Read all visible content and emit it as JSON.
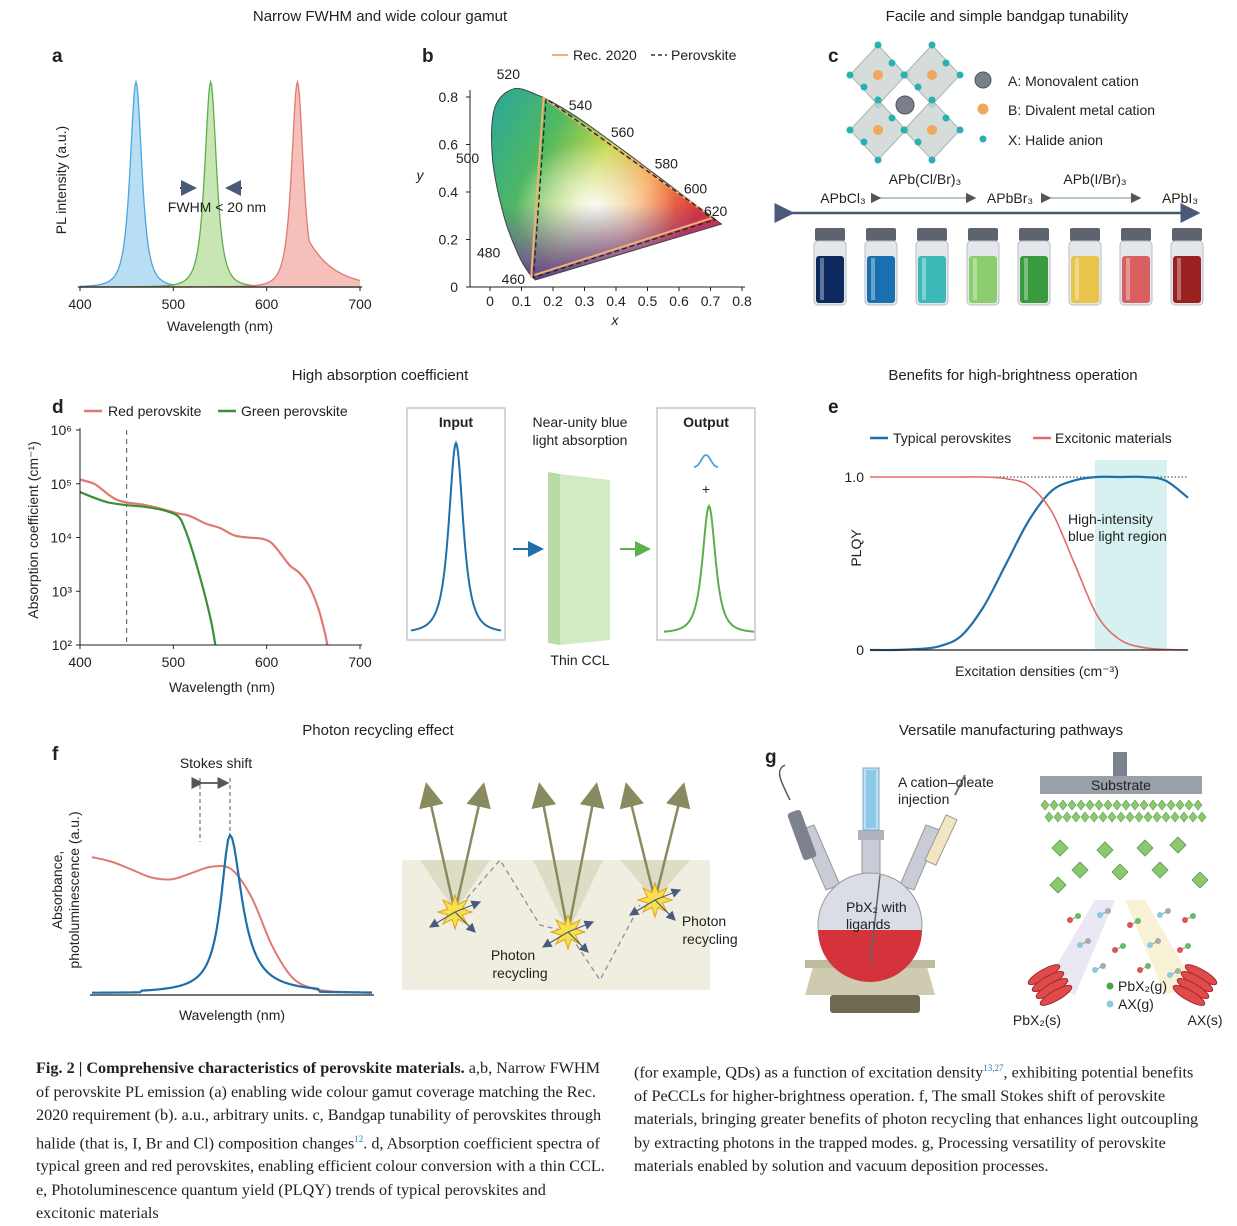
{
  "section_titles": {
    "ab": "Narrow FWHM and wide colour gamut",
    "c": "Facile and simple bandgap tunability",
    "d": "High absorption coefficient",
    "e": "Benefits for high-brightness operation",
    "f": "Photon recycling effect",
    "g": "Versatile manufacturing pathways"
  },
  "panel_labels": [
    "a",
    "b",
    "c",
    "d",
    "e",
    "f",
    "g"
  ],
  "colors": {
    "blue": "#4aa5dc",
    "green": "#5bb04a",
    "red": "#e07a70",
    "dark_blue": "#1f6fa8",
    "excitonic_red": "#e06b6b",
    "shade": "#d6f1f0"
  },
  "chart_data": [
    {
      "id": "a",
      "type": "area",
      "xlabel": "Wavelength (nm)",
      "ylabel": "PL intensity (a.u.)",
      "xlim": [
        400,
        700
      ],
      "xticks": [
        "400",
        "500",
        "600",
        "700"
      ],
      "series": [
        {
          "peak_nm": 460,
          "fwhm_nm": 20,
          "color": "#4aa5dc"
        },
        {
          "peak_nm": 540,
          "fwhm_nm": 20,
          "color": "#5bb04a"
        },
        {
          "peak_nm": 633,
          "fwhm_nm": 20,
          "color": "#e07a70"
        }
      ],
      "annotation": "FWHM < 20 nm"
    },
    {
      "id": "b",
      "type": "line",
      "xlabel": "x",
      "ylabel": "y",
      "xlim": [
        0,
        0.8
      ],
      "ylim": [
        0,
        0.85
      ],
      "xticks": [
        "0",
        "0.1",
        "0.2",
        "0.3",
        "0.4",
        "0.5",
        "0.6",
        "0.7",
        "0.8"
      ],
      "yticks": [
        "0",
        "0.2",
        "0.4",
        "0.6",
        "0.8"
      ],
      "legend": [
        "Rec. 2020",
        "Perovskite"
      ],
      "legend_placement": "top",
      "rec2020": [
        [
          0.708,
          0.292
        ],
        [
          0.17,
          0.797
        ],
        [
          0.131,
          0.046
        ]
      ],
      "perovskite": [
        [
          0.715,
          0.284
        ],
        [
          0.178,
          0.793
        ],
        [
          0.138,
          0.04
        ]
      ],
      "locus": [
        [
          0.144,
          0.03
        ],
        [
          0.124,
          0.058
        ],
        [
          0.091,
          0.133
        ],
        [
          0.045,
          0.295
        ],
        [
          0.008,
          0.538
        ],
        [
          0.014,
          0.75
        ],
        [
          0.074,
          0.834
        ],
        [
          0.155,
          0.806
        ],
        [
          0.23,
          0.754
        ],
        [
          0.302,
          0.692
        ],
        [
          0.373,
          0.624
        ],
        [
          0.444,
          0.555
        ],
        [
          0.512,
          0.487
        ],
        [
          0.575,
          0.424
        ],
        [
          0.627,
          0.372
        ],
        [
          0.691,
          0.308
        ],
        [
          0.735,
          0.265
        ]
      ],
      "wavelength_labels": [
        {
          "text": "460",
          "x": 0.144,
          "y": 0.03
        },
        {
          "text": "480",
          "x": 0.091,
          "y": 0.133
        },
        {
          "text": "500",
          "x": 0.008,
          "y": 0.538
        },
        {
          "text": "520",
          "x": 0.074,
          "y": 0.834
        },
        {
          "text": "540",
          "x": 0.23,
          "y": 0.754
        },
        {
          "text": "560",
          "x": 0.373,
          "y": 0.624
        },
        {
          "text": "580",
          "x": 0.512,
          "y": 0.487
        },
        {
          "text": "600",
          "x": 0.627,
          "y": 0.372
        },
        {
          "text": "620",
          "x": 0.691,
          "y": 0.308
        }
      ]
    },
    {
      "id": "d",
      "type": "line",
      "xlabel": "Wavelength (nm)",
      "ylabel": "Absorption coefficient (cm⁻¹)",
      "xlim": [
        400,
        700
      ],
      "ylim": [
        100,
        1000000
      ],
      "yscale": "log",
      "xticks": [
        "400",
        "500",
        "600",
        "700"
      ],
      "yticks": [
        "10²",
        "10³",
        "10⁴",
        "10⁵",
        "10⁶"
      ],
      "marker_line_nm": 450,
      "legend_placement": "top",
      "series": [
        {
          "name": "Red perovskite",
          "color": "#e07a70",
          "x": [
            400,
            415,
            425,
            432,
            440,
            450,
            470,
            490,
            505,
            515,
            525,
            535,
            550,
            565,
            580,
            595,
            605,
            615,
            625,
            635,
            645,
            655,
            662,
            665
          ],
          "y": [
            120000,
            100000,
            75000,
            60000,
            50000,
            45000,
            40000,
            33000,
            28000,
            26000,
            22000,
            18000,
            15000,
            11000,
            10000,
            9500,
            8000,
            5000,
            3000,
            2200,
            1300,
            500,
            180,
            100
          ]
        },
        {
          "name": "Green perovskite",
          "color": "#3a8f3a",
          "x": [
            400,
            415,
            430,
            450,
            470,
            490,
            505,
            512,
            520,
            528,
            535,
            541,
            545
          ],
          "y": [
            70000,
            55000,
            45000,
            40000,
            37000,
            32000,
            25000,
            15000,
            6000,
            2000,
            700,
            250,
            100
          ]
        }
      ]
    },
    {
      "id": "e",
      "type": "line",
      "xlabel": "Excitation densities (cm⁻³)",
      "ylabel": "PLQY",
      "yticks": [
        "0",
        "1.0"
      ],
      "ylim": [
        0,
        1.0
      ],
      "legend_placement": "top",
      "series": [
        {
          "name": "Typical perovskites",
          "color": "#1f6fa8",
          "values": [
            0,
            0,
            0.005,
            0.02,
            0.08,
            0.25,
            0.5,
            0.75,
            0.92,
            0.98,
            1.0,
            1.0,
            1.0,
            0.98,
            0.88
          ]
        },
        {
          "name": "Excitonic materials",
          "color": "#e06b6b",
          "values": [
            1.0,
            1.0,
            1.0,
            1.0,
            1.0,
            1.0,
            0.99,
            0.95,
            0.8,
            0.5,
            0.2,
            0.06,
            0.015,
            0.003,
            0
          ]
        }
      ],
      "annotation": "High-intensity blue light region"
    },
    {
      "id": "f",
      "type": "line",
      "xlabel": "Wavelength (nm)",
      "ylabel": "Absorbance, photoluminescence (a.u.)",
      "annotation": "Stokes shift",
      "series": [
        {
          "color": "#e07a70",
          "values": [
            0.86,
            0.83,
            0.78,
            0.73,
            0.72,
            0.76,
            0.8,
            0.78,
            0.6,
            0.3,
            0.1,
            0.03,
            0.01,
            0.005,
            0
          ]
        },
        {
          "color": "#1f6fa8",
          "values": [
            0.01,
            0.01,
            0.01,
            0.01,
            0.015,
            0.03,
            0.2,
            1.0,
            0.45,
            0.08,
            0.02,
            0.01,
            0.005,
            0.005,
            0.005
          ]
        }
      ]
    }
  ],
  "panel_b_legend": {
    "rec": "Rec. 2020",
    "pero": "Perovskite"
  },
  "panel_c": {
    "legend": [
      "A: Monovalent cation",
      "B: Divalent metal cation",
      "X: Halide anion"
    ],
    "compositions": [
      "APbCl₃",
      "APbBr₃",
      "APbI₃"
    ],
    "mixed": [
      "APb(Cl/Br)₃",
      "APb(I/Br)₃"
    ],
    "vial_colors": [
      "#0d2a5e",
      "#1a6fb0",
      "#3cb8b8",
      "#8ccd6e",
      "#3a9a3e",
      "#e8c44a",
      "#d96060",
      "#9b2020"
    ]
  },
  "panel_d_schematic": {
    "input": "Input",
    "output": "Output",
    "absorption": [
      "Near-unity blue",
      "light absorption"
    ],
    "plus": "+",
    "ccl": "Thin CCL"
  },
  "panel_f_schematic": {
    "recycling1": [
      "Photon",
      "recycling"
    ],
    "recycling2": [
      "Photon",
      "recycling"
    ]
  },
  "panel_g": {
    "injection": [
      "A cation–oleate",
      "injection"
    ],
    "flask": [
      "PbX₂ with",
      "ligands"
    ],
    "substrate": "Substrate",
    "pbx2_s": "PbX₂(s)",
    "ax_s": "AX(s)",
    "pbx2_g": "PbX₂(g)",
    "ax_g": "AX(g)"
  },
  "caption": {
    "fig": "Fig. 2 | Comprehensive characteristics of perovskite materials.",
    "left": " a,b, Narrow FWHM of perovskite PL emission (a) enabling wide colour gamut coverage matching the Rec. 2020 requirement (b). a.u., arbitrary units. c, Bandgap tunability of perovskites through halide (that is, I, Br and Cl) composition changes",
    "ref1": "12",
    "left2": ". d, Absorption coefficient spectra of typical green and red perovskites, enabling efficient colour conversion with a thin CCL. e, Photoluminescence quantum yield (PLQY) trends of typical perovskites and excitonic materials",
    "right1": "(for example, QDs) as a function of excitation density",
    "ref2": "13,27",
    "right2": ", exhibiting potential benefits of PeCCLs for higher-brightness operation. f, The small Stokes shift of perovskite materials, bringing greater benefits of photon recycling that enhances light outcoupling by extracting photons in the trapped modes. g, Processing versatility of perovskite materials enabled by solution and vacuum deposition processes."
  }
}
